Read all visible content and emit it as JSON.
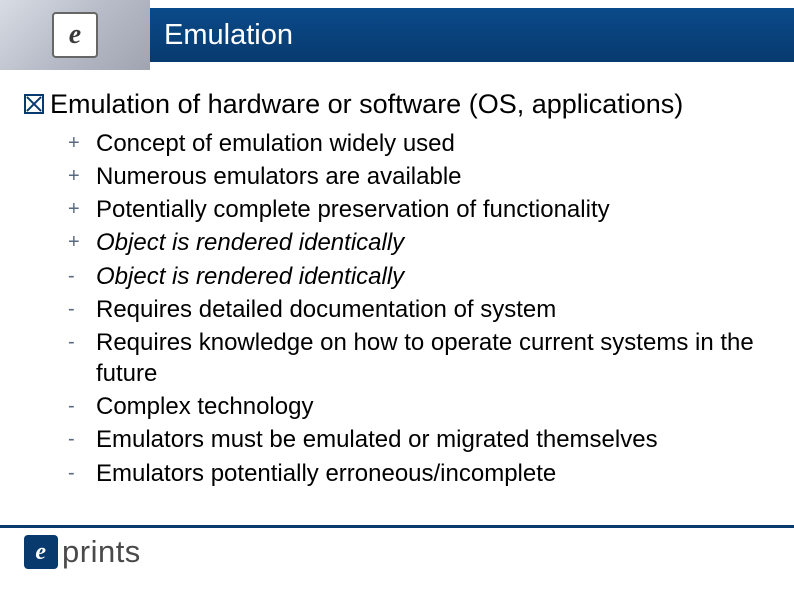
{
  "header": {
    "logo_letter": "e",
    "title": "Emulation",
    "title_color": "#ffffff",
    "bar_gradient_top": "#0a4a8a",
    "bar_gradient_bottom": "#083a6e"
  },
  "main_bullet": {
    "text": "Emulation of  hardware or software (OS, applications)",
    "icon_border_color": "#083a6e",
    "fontsize": 27
  },
  "sub_items": [
    {
      "marker": "+",
      "text": "Concept of emulation widely used",
      "italic": false
    },
    {
      "marker": "+",
      "text": "Numerous emulators are available",
      "italic": false
    },
    {
      "marker": "+",
      "text": "Potentially complete preservation of functionality",
      "italic": false
    },
    {
      "marker": "+",
      "text": "Object is rendered identically",
      "italic": true
    },
    {
      "marker": "-",
      "text": "Object is rendered identically",
      "italic": true
    },
    {
      "marker": "-",
      "text": "Requires detailed documentation of system",
      "italic": false
    },
    {
      "marker": "-",
      "text": "Requires knowledge on how to operate current systems in the future",
      "italic": false
    },
    {
      "marker": "-",
      "text": "Complex technology",
      "italic": false
    },
    {
      "marker": "-",
      "text": "Emulators must be emulated or migrated themselves",
      "italic": false
    },
    {
      "marker": "-",
      "text": "Emulators potentially erroneous/incomplete",
      "italic": false
    }
  ],
  "sub_style": {
    "marker_color": "#5a6a82",
    "marker_fontsize": 20,
    "text_fontsize": 24,
    "text_color": "#000000"
  },
  "footer": {
    "divider_color": "#083a6e",
    "logo_e_bg": "#083a6e",
    "logo_e_letter": "e",
    "logo_text": "prints",
    "logo_text_color": "#4a4a4a"
  },
  "colors": {
    "background": "#ffffff"
  }
}
